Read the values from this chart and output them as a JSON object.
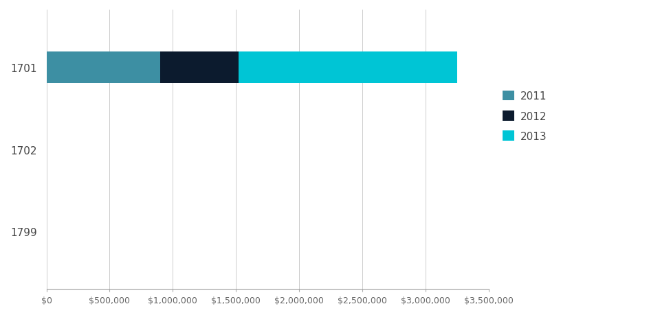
{
  "categories": [
    "1799",
    "1702",
    "1701"
  ],
  "series": {
    "2011": [
      0,
      0,
      900000
    ],
    "2012": [
      0,
      0,
      620000
    ],
    "2013": [
      0,
      0,
      1730000
    ]
  },
  "colors": {
    "2011": "#3d8fa3",
    "2012": "#0c1b2e",
    "2013": "#00c5d5"
  },
  "xlim": [
    0,
    3500000
  ],
  "xticks": [
    0,
    500000,
    1000000,
    1500000,
    2000000,
    2500000,
    3000000,
    3500000
  ],
  "xtick_labels": [
    "$0",
    "$500,000",
    "$1,000,000",
    "$1,500,000",
    "$2,000,000",
    "$2,500,000",
    "$3,000,000",
    "$3,500,000"
  ],
  "background_color": "#ffffff",
  "grid_color": "#cccccc",
  "legend_labels": [
    "2011",
    "2012",
    "2013"
  ],
  "bar_height": 0.38,
  "figsize": [
    9.45,
    4.6
  ],
  "dpi": 100
}
